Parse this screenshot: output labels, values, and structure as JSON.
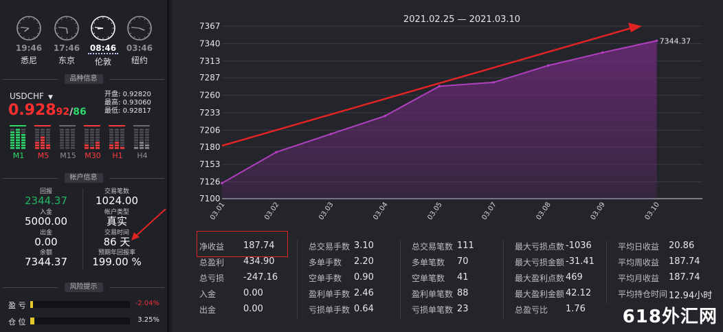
{
  "clocks": [
    {
      "time": "19:46",
      "city": "悉尼",
      "hour": 7,
      "active": false
    },
    {
      "time": "17:46",
      "city": "东京",
      "hour": 5,
      "active": false
    },
    {
      "time": "08:46",
      "city": "伦敦",
      "hour": 8,
      "active": true
    },
    {
      "time": "03:46",
      "city": "纽约",
      "hour": 3,
      "active": false
    }
  ],
  "sections": {
    "instrument": "品种信息",
    "account": "帐户信息",
    "risk": "风险提示"
  },
  "instrument": {
    "symbol": "USDCHF",
    "bid_main": "0.928",
    "bid_sub": "92",
    "slash": "/",
    "ask_sub": "86",
    "open_label": "开盘:",
    "open": "0.92820",
    "high_label": "最高:",
    "high": "0.93060",
    "low_label": "最低:",
    "low": "0.92817",
    "timeframes": [
      {
        "label": "M1",
        "color": "#2fd86a",
        "levels": [
          7,
          8,
          6
        ]
      },
      {
        "label": "M5",
        "color": "#ff3b3b",
        "levels": [
          3,
          5,
          2
        ]
      },
      {
        "label": "M15",
        "color": "#8d8d95",
        "levels": [
          0,
          0,
          0
        ]
      },
      {
        "label": "M30",
        "color": "#ff3b3b",
        "levels": [
          2,
          1,
          3
        ]
      },
      {
        "label": "H1",
        "color": "#ff3b3b",
        "levels": [
          2,
          3,
          1
        ]
      },
      {
        "label": "H4",
        "color": "#8d8d95",
        "levels": [
          1,
          3,
          2
        ]
      }
    ]
  },
  "account": {
    "return_label": "回报",
    "return": "2344.37",
    "trades_label": "交易笔数",
    "trades": "1024.00",
    "deposit_label": "入金",
    "deposit": "5000.00",
    "type_label": "帐户类型",
    "type": "真实",
    "withdraw_label": "出金",
    "withdraw": "0.00",
    "time_label": "交易时间",
    "time": "86 天",
    "balance_label": "余额",
    "balance": "7344.37",
    "annual_label": "预期年回报率",
    "annual": "199.00 %"
  },
  "risk": [
    {
      "label": "盈 亏",
      "value": "-2.04%",
      "fraction": 0.0204,
      "color": "#e8333a"
    },
    {
      "label": "仓 位",
      "value": "3.25%",
      "fraction": 0.0325,
      "color": "#e6e6e6"
    }
  ],
  "chart_data": {
    "type": "area",
    "title": "2021.02.25 — 2021.03.10",
    "x": [
      "03.01",
      "03.02",
      "03.03",
      "03.04",
      "03.05",
      "03.07",
      "03.08",
      "03.09",
      "03.10"
    ],
    "values": [
      7124,
      7172,
      7200,
      7228,
      7274,
      7280,
      7306,
      7326,
      7344.37
    ],
    "yticks": [
      7100,
      7126,
      7153,
      7180,
      7206,
      7233,
      7260,
      7287,
      7313,
      7340,
      7367
    ],
    "ylim": [
      7100,
      7367
    ],
    "last_label": "7344.37",
    "line_color": "#b040c0",
    "fill_color": "#6c2a78",
    "grid": true
  },
  "stats": [
    [
      {
        "k": "净收益",
        "v": "187.74"
      },
      {
        "k": "总盈利",
        "v": "434.90"
      },
      {
        "k": "总亏损",
        "v": "-247.16"
      },
      {
        "k": "入金",
        "v": "0.00"
      },
      {
        "k": "出金",
        "v": "0.00"
      }
    ],
    [
      {
        "k": "总交易手数",
        "v": "3.10"
      },
      {
        "k": "多单手数",
        "v": "2.20"
      },
      {
        "k": "空单手数",
        "v": "0.90"
      },
      {
        "k": "盈利单手数",
        "v": "2.46"
      },
      {
        "k": "亏损单手数",
        "v": "0.64"
      }
    ],
    [
      {
        "k": "总交易笔数",
        "v": "111"
      },
      {
        "k": "多单笔数",
        "v": "70"
      },
      {
        "k": "空单笔数",
        "v": "41"
      },
      {
        "k": "盈利单笔数",
        "v": "88"
      },
      {
        "k": "亏损单笔数",
        "v": "23"
      }
    ],
    [
      {
        "k": "最大亏损点数",
        "v": "-1036"
      },
      {
        "k": "最大亏损金额",
        "v": "-31.41"
      },
      {
        "k": "最大盈利点数",
        "v": "469"
      },
      {
        "k": "最大盈利金额",
        "v": "42.12"
      },
      {
        "k": "总盈亏比",
        "v": "1.76"
      }
    ],
    [
      {
        "k": "平均日收益",
        "v": "20.86"
      },
      {
        "k": "平均周收益",
        "v": "187.74"
      },
      {
        "k": "平均月收益",
        "v": "187.74"
      },
      {
        "k": "平均持仓时间",
        "v": "12.94小时"
      }
    ]
  ],
  "watermark": "618外汇网",
  "colors": {
    "accent_red": "#e02323",
    "bg": "#1b1c22",
    "panel": "#24252b"
  }
}
